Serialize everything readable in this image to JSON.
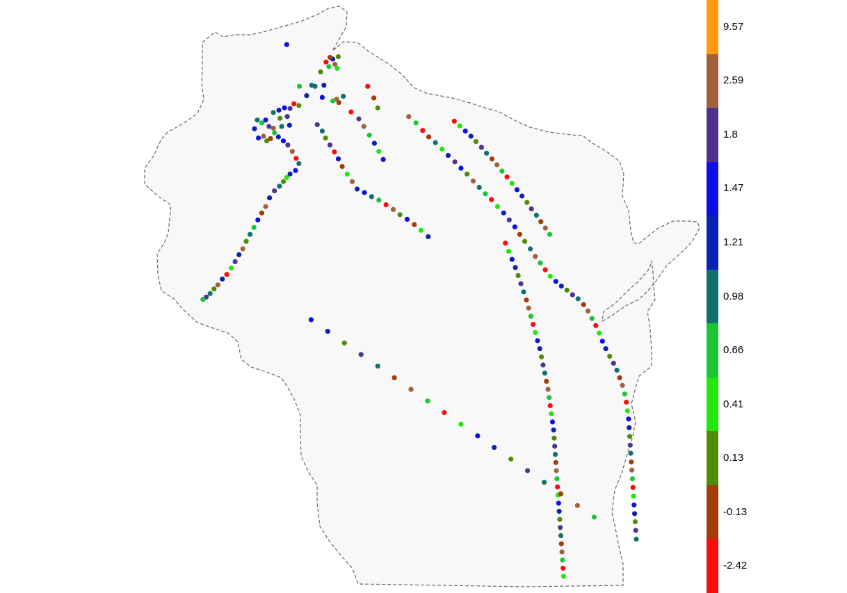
{
  "map": {
    "region": "Wisconsin",
    "outline_style": "dashed",
    "fill": "#f8f8f8",
    "outline_color": "#666666"
  },
  "legend": {
    "bins": [
      {
        "label": "9.57",
        "color": "#ff9a0e"
      },
      {
        "label": "2.59",
        "color": "#a0613c"
      },
      {
        "label": "1.8",
        "color": "#4e3390"
      },
      {
        "label": "1.47",
        "color": "#0e0ee8"
      },
      {
        "label": "1.21",
        "color": "#0a22b4"
      },
      {
        "label": "0.98",
        "color": "#107070"
      },
      {
        "label": "0.66",
        "color": "#1ac633"
      },
      {
        "label": "0.41",
        "color": "#22e80a"
      },
      {
        "label": "0.13",
        "color": "#4e8c08"
      },
      {
        "label": "-0.13",
        "color": "#a23c08"
      },
      {
        "label": "-2.42",
        "color": "#ff0a0a"
      }
    ]
  },
  "sites": {
    "classes": [
      "-2.42",
      "-0.13",
      "0.13",
      "0.41",
      "0.66",
      "0.98",
      "1.21",
      "1.47",
      "1.8",
      "2.59"
    ],
    "points": [
      [
        0.256,
        0.066,
        7
      ],
      [
        0.339,
        0.091,
        6
      ],
      [
        0.349,
        0.087,
        2
      ],
      [
        0.343,
        0.1,
        9
      ],
      [
        0.332,
        0.104,
        4
      ],
      [
        0.334,
        0.088,
        1
      ],
      [
        0.327,
        0.096,
        0
      ],
      [
        0.347,
        0.107,
        3
      ],
      [
        0.317,
        0.113,
        2
      ],
      [
        0.301,
        0.136,
        5
      ],
      [
        0.279,
        0.138,
        4
      ],
      [
        0.307,
        0.138,
        5
      ],
      [
        0.323,
        0.136,
        6
      ],
      [
        0.358,
        0.155,
        5
      ],
      [
        0.35,
        0.166,
        1
      ],
      [
        0.32,
        0.157,
        7
      ],
      [
        0.339,
        0.163,
        4
      ],
      [
        0.346,
        0.16,
        9
      ],
      [
        0.292,
        0.154,
        6
      ],
      [
        0.278,
        0.171,
        2
      ],
      [
        0.269,
        0.168,
        0
      ],
      [
        0.262,
        0.176,
        8
      ],
      [
        0.252,
        0.175,
        7
      ],
      [
        0.242,
        0.179,
        6
      ],
      [
        0.232,
        0.183,
        5
      ],
      [
        0.244,
        0.193,
        2
      ],
      [
        0.257,
        0.19,
        8
      ],
      [
        0.261,
        0.205,
        6
      ],
      [
        0.247,
        0.207,
        5
      ],
      [
        0.232,
        0.21,
        9
      ],
      [
        0.224,
        0.207,
        8
      ],
      [
        0.218,
        0.196,
        7
      ],
      [
        0.211,
        0.201,
        4
      ],
      [
        0.203,
        0.196,
        5
      ],
      [
        0.198,
        0.211,
        6
      ],
      [
        0.205,
        0.227,
        7
      ],
      [
        0.214,
        0.224,
        9
      ],
      [
        0.22,
        0.232,
        2
      ],
      [
        0.227,
        0.228,
        1
      ],
      [
        0.234,
        0.218,
        4
      ],
      [
        0.241,
        0.225,
        6
      ],
      [
        0.25,
        0.232,
        7
      ],
      [
        0.258,
        0.239,
        8
      ],
      [
        0.266,
        0.25,
        9
      ],
      [
        0.273,
        0.262,
        0
      ],
      [
        0.278,
        0.271,
        5
      ],
      [
        0.272,
        0.283,
        7
      ],
      [
        0.262,
        0.289,
        6
      ],
      [
        0.256,
        0.295,
        3
      ],
      [
        0.25,
        0.302,
        2
      ],
      [
        0.243,
        0.31,
        5
      ],
      [
        0.234,
        0.318,
        8
      ],
      [
        0.225,
        0.33,
        6
      ],
      [
        0.218,
        0.345,
        9
      ],
      [
        0.211,
        0.356,
        1
      ],
      [
        0.204,
        0.368,
        7
      ],
      [
        0.197,
        0.381,
        4
      ],
      [
        0.19,
        0.393,
        5
      ],
      [
        0.183,
        0.405,
        2
      ],
      [
        0.177,
        0.418,
        9
      ],
      [
        0.17,
        0.428,
        6
      ],
      [
        0.163,
        0.44,
        8
      ],
      [
        0.156,
        0.451,
        3
      ],
      [
        0.148,
        0.462,
        0
      ],
      [
        0.14,
        0.47,
        6
      ],
      [
        0.132,
        0.48,
        9
      ],
      [
        0.125,
        0.487,
        2
      ],
      [
        0.118,
        0.495,
        5
      ],
      [
        0.111,
        0.501,
        8
      ],
      [
        0.105,
        0.505,
        4
      ],
      [
        0.311,
        0.204,
        8
      ],
      [
        0.32,
        0.215,
        5
      ],
      [
        0.326,
        0.227,
        2
      ],
      [
        0.334,
        0.239,
        8
      ],
      [
        0.342,
        0.251,
        0
      ],
      [
        0.349,
        0.263,
        7
      ],
      [
        0.356,
        0.276,
        1
      ],
      [
        0.365,
        0.289,
        3
      ],
      [
        0.374,
        0.302,
        9
      ],
      [
        0.383,
        0.315,
        6
      ],
      [
        0.396,
        0.321,
        7
      ],
      [
        0.409,
        0.328,
        5
      ],
      [
        0.422,
        0.334,
        4
      ],
      [
        0.435,
        0.342,
        0
      ],
      [
        0.448,
        0.35,
        9
      ],
      [
        0.46,
        0.359,
        2
      ],
      [
        0.473,
        0.367,
        7
      ],
      [
        0.486,
        0.376,
        1
      ],
      [
        0.498,
        0.386,
        3
      ],
      [
        0.511,
        0.397,
        6
      ],
      [
        0.402,
        0.138,
        0
      ],
      [
        0.413,
        0.158,
        1
      ],
      [
        0.42,
        0.175,
        2
      ],
      [
        0.372,
        0.182,
        0
      ],
      [
        0.386,
        0.194,
        8
      ],
      [
        0.395,
        0.207,
        9
      ],
      [
        0.405,
        0.222,
        4
      ],
      [
        0.414,
        0.236,
        6
      ],
      [
        0.422,
        0.25,
        3
      ],
      [
        0.43,
        0.264,
        7
      ],
      [
        0.476,
        0.19,
        9
      ],
      [
        0.489,
        0.201,
        4
      ],
      [
        0.501,
        0.214,
        0
      ],
      [
        0.512,
        0.225,
        1
      ],
      [
        0.524,
        0.235,
        5
      ],
      [
        0.536,
        0.246,
        3
      ],
      [
        0.547,
        0.257,
        6
      ],
      [
        0.559,
        0.268,
        8
      ],
      [
        0.57,
        0.279,
        7
      ],
      [
        0.581,
        0.289,
        2
      ],
      [
        0.592,
        0.301,
        9
      ],
      [
        0.603,
        0.312,
        5
      ],
      [
        0.614,
        0.323,
        4
      ],
      [
        0.625,
        0.333,
        0
      ],
      [
        0.636,
        0.345,
        3
      ],
      [
        0.647,
        0.356,
        6
      ],
      [
        0.657,
        0.368,
        8
      ],
      [
        0.667,
        0.38,
        7
      ],
      [
        0.676,
        0.393,
        1
      ],
      [
        0.685,
        0.405,
        2
      ],
      [
        0.695,
        0.418,
        5
      ],
      [
        0.704,
        0.431,
        9
      ],
      [
        0.713,
        0.442,
        4
      ],
      [
        0.722,
        0.454,
        0
      ],
      [
        0.731,
        0.465,
        3
      ],
      [
        0.741,
        0.474,
        7
      ],
      [
        0.751,
        0.482,
        6
      ],
      [
        0.761,
        0.489,
        2
      ],
      [
        0.771,
        0.497,
        8
      ],
      [
        0.781,
        0.504,
        5
      ],
      [
        0.791,
        0.514,
        1
      ],
      [
        0.799,
        0.525,
        9
      ],
      [
        0.806,
        0.538,
        4
      ],
      [
        0.813,
        0.55,
        0
      ],
      [
        0.819,
        0.563,
        3
      ],
      [
        0.825,
        0.577,
        7
      ],
      [
        0.831,
        0.59,
        6
      ],
      [
        0.838,
        0.603,
        2
      ],
      [
        0.845,
        0.615,
        8
      ],
      [
        0.851,
        0.627,
        5
      ],
      [
        0.856,
        0.64,
        1
      ],
      [
        0.861,
        0.653,
        9
      ],
      [
        0.865,
        0.668,
        4
      ],
      [
        0.868,
        0.682,
        0
      ],
      [
        0.87,
        0.697,
        3
      ],
      [
        0.872,
        0.711,
        7
      ],
      [
        0.873,
        0.726,
        6
      ],
      [
        0.874,
        0.741,
        2
      ],
      [
        0.875,
        0.756,
        8
      ],
      [
        0.876,
        0.77,
        5
      ],
      [
        0.877,
        0.785,
        1
      ],
      [
        0.878,
        0.799,
        9
      ],
      [
        0.879,
        0.814,
        4
      ],
      [
        0.88,
        0.829,
        0
      ],
      [
        0.881,
        0.844,
        3
      ],
      [
        0.882,
        0.859,
        7
      ],
      [
        0.883,
        0.874,
        6
      ],
      [
        0.884,
        0.888,
        2
      ],
      [
        0.885,
        0.903,
        8
      ],
      [
        0.886,
        0.918,
        5
      ],
      [
        0.558,
        0.198,
        0
      ],
      [
        0.568,
        0.206,
        3
      ],
      [
        0.578,
        0.215,
        7
      ],
      [
        0.588,
        0.224,
        6
      ],
      [
        0.597,
        0.233,
        2
      ],
      [
        0.607,
        0.243,
        8
      ],
      [
        0.616,
        0.253,
        5
      ],
      [
        0.626,
        0.263,
        1
      ],
      [
        0.635,
        0.273,
        9
      ],
      [
        0.644,
        0.284,
        4
      ],
      [
        0.653,
        0.294,
        0
      ],
      [
        0.662,
        0.305,
        3
      ],
      [
        0.671,
        0.316,
        7
      ],
      [
        0.68,
        0.327,
        6
      ],
      [
        0.689,
        0.338,
        2
      ],
      [
        0.697,
        0.349,
        8
      ],
      [
        0.706,
        0.36,
        5
      ],
      [
        0.714,
        0.371,
        1
      ],
      [
        0.722,
        0.382,
        9
      ],
      [
        0.73,
        0.393,
        4
      ],
      [
        0.65,
        0.408,
        0
      ],
      [
        0.656,
        0.422,
        3
      ],
      [
        0.662,
        0.436,
        7
      ],
      [
        0.668,
        0.45,
        6
      ],
      [
        0.673,
        0.464,
        2
      ],
      [
        0.678,
        0.478,
        8
      ],
      [
        0.683,
        0.492,
        5
      ],
      [
        0.688,
        0.506,
        1
      ],
      [
        0.692,
        0.52,
        9
      ],
      [
        0.696,
        0.534,
        4
      ],
      [
        0.7,
        0.548,
        0
      ],
      [
        0.704,
        0.562,
        3
      ],
      [
        0.708,
        0.576,
        7
      ],
      [
        0.712,
        0.59,
        6
      ],
      [
        0.715,
        0.604,
        2
      ],
      [
        0.718,
        0.618,
        8
      ],
      [
        0.721,
        0.632,
        5
      ],
      [
        0.724,
        0.646,
        1
      ],
      [
        0.727,
        0.66,
        9
      ],
      [
        0.729,
        0.674,
        4
      ],
      [
        0.731,
        0.688,
        0
      ],
      [
        0.733,
        0.702,
        3
      ],
      [
        0.735,
        0.716,
        7
      ],
      [
        0.737,
        0.73,
        6
      ],
      [
        0.738,
        0.744,
        2
      ],
      [
        0.739,
        0.758,
        8
      ],
      [
        0.74,
        0.772,
        5
      ],
      [
        0.741,
        0.786,
        1
      ],
      [
        0.742,
        0.8,
        9
      ],
      [
        0.743,
        0.814,
        4
      ],
      [
        0.744,
        0.828,
        0
      ],
      [
        0.745,
        0.842,
        3
      ],
      [
        0.746,
        0.856,
        7
      ],
      [
        0.747,
        0.87,
        6
      ],
      [
        0.748,
        0.884,
        2
      ],
      [
        0.749,
        0.898,
        8
      ],
      [
        0.75,
        0.912,
        5
      ],
      [
        0.751,
        0.926,
        1
      ],
      [
        0.752,
        0.94,
        9
      ],
      [
        0.753,
        0.954,
        4
      ],
      [
        0.754,
        0.968,
        0
      ],
      [
        0.755,
        0.982,
        3
      ],
      [
        0.3,
        0.54,
        7
      ],
      [
        0.33,
        0.56,
        6
      ],
      [
        0.36,
        0.58,
        2
      ],
      [
        0.39,
        0.6,
        8
      ],
      [
        0.42,
        0.62,
        5
      ],
      [
        0.45,
        0.64,
        1
      ],
      [
        0.48,
        0.66,
        9
      ],
      [
        0.51,
        0.68,
        4
      ],
      [
        0.54,
        0.7,
        0
      ],
      [
        0.57,
        0.72,
        3
      ],
      [
        0.6,
        0.74,
        7
      ],
      [
        0.63,
        0.76,
        6
      ],
      [
        0.66,
        0.78,
        2
      ],
      [
        0.69,
        0.8,
        8
      ],
      [
        0.72,
        0.82,
        5
      ],
      [
        0.75,
        0.84,
        1
      ],
      [
        0.78,
        0.86,
        9
      ],
      [
        0.81,
        0.88,
        4
      ]
    ]
  }
}
